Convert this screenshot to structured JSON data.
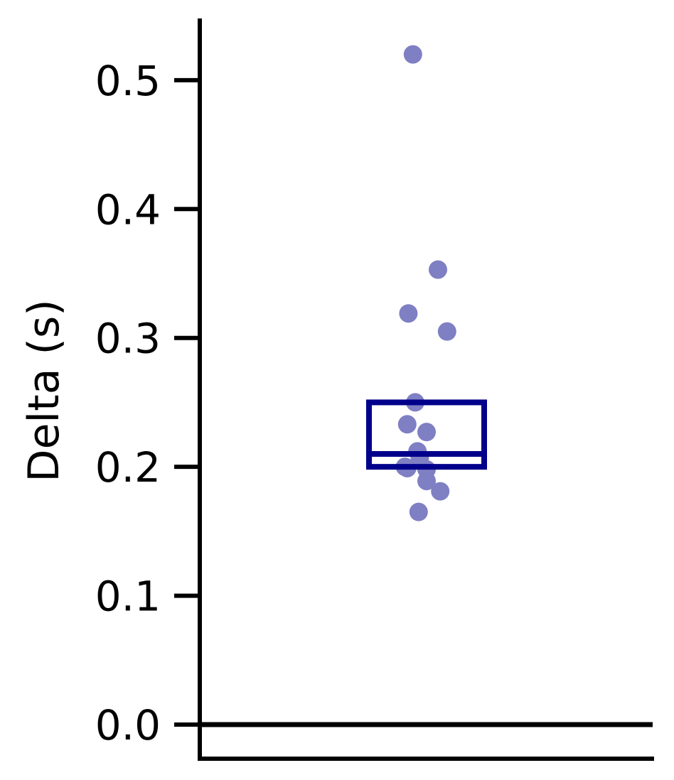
{
  "chart_data": {
    "type": "scatter",
    "title": "",
    "xlabel": "",
    "ylabel": "Delta (s)",
    "ylim": [
      -0.025,
      0.545
    ],
    "yticks": [
      0.0,
      0.1,
      0.2,
      0.3,
      0.4,
      0.5
    ],
    "ytick_labels": [
      "0.0",
      "0.1",
      "0.2",
      "0.3",
      "0.4",
      "0.5"
    ],
    "reference_line_y": 0.0,
    "point_color": "#7f7fc4",
    "box_color": "#00008b",
    "points": [
      {
        "x": -0.12,
        "y": 0.52
      },
      {
        "x": 0.1,
        "y": 0.353
      },
      {
        "x": -0.16,
        "y": 0.319
      },
      {
        "x": 0.18,
        "y": 0.305
      },
      {
        "x": -0.1,
        "y": 0.25
      },
      {
        "x": -0.17,
        "y": 0.233
      },
      {
        "x": 0.0,
        "y": 0.227
      },
      {
        "x": -0.08,
        "y": 0.212
      },
      {
        "x": -0.06,
        "y": 0.207
      },
      {
        "x": -0.19,
        "y": 0.2
      },
      {
        "x": -0.17,
        "y": 0.199
      },
      {
        "x": 0.0,
        "y": 0.198
      },
      {
        "x": 0.0,
        "y": 0.189
      },
      {
        "x": 0.12,
        "y": 0.181
      },
      {
        "x": -0.07,
        "y": 0.165
      }
    ],
    "box": {
      "q1": 0.2,
      "median": 0.21,
      "q3": 0.25
    }
  }
}
